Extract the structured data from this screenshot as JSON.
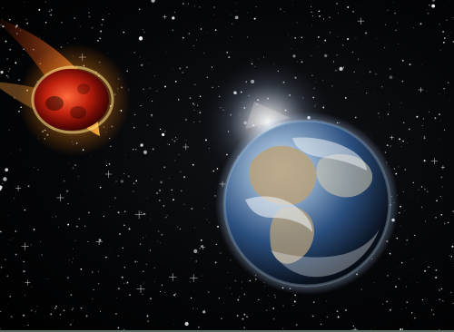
{
  "scene": {
    "subject": "",
    "colors": {
      "space": "#000000",
      "ocean": "#2b4f7f",
      "land": "#b7a07a",
      "cloud": "#e9eef3",
      "fire_core": "#c2220e",
      "fire_glow": "#ffd15a",
      "bottom_strip": "#5a6e63"
    },
    "icons": {
      "earth": "earth-icon",
      "meteor": "meteor-icon",
      "sun_flare": "sun-flare-icon",
      "stars": "stars-icon"
    }
  }
}
